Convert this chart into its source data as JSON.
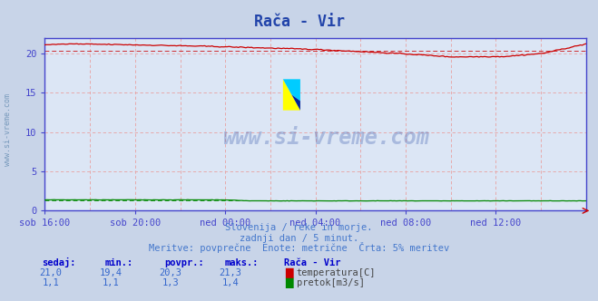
{
  "title": "Rača - Vir",
  "bg_color": "#c8d4e8",
  "plot_bg_color": "#dce6f5",
  "grid_h_color": "#e8a0a0",
  "grid_v_color": "#e8a0a0",
  "x_labels": [
    "sob 16:00",
    "sob 20:00",
    "ned 00:00",
    "ned 04:00",
    "ned 08:00",
    "ned 12:00"
  ],
  "x_ticks_pos": [
    0,
    48,
    96,
    144,
    192,
    240
  ],
  "x_max": 288,
  "y_min": 0,
  "y_max": 22,
  "y_ticks": [
    0,
    5,
    10,
    15,
    20
  ],
  "temp_color": "#cc0000",
  "temp_avg": 20.3,
  "temp_min": 19.4,
  "temp_max": 21.3,
  "flow_color": "#008800",
  "flow_avg": 1.3,
  "flow_min": 1.1,
  "flow_max": 1.4,
  "subtitle1": "Slovenija / reke in morje.",
  "subtitle2": "zadnji dan / 5 minut.",
  "subtitle3": "Meritve: povprečne  Enote: metrične  Črta: 5% meritev",
  "table_headers": [
    "sedaj:",
    "min.:",
    "povpr.:",
    "maks.:",
    "Rača - Vir"
  ],
  "table_row1": [
    "21,0",
    "19,4",
    "20,3",
    "21,3"
  ],
  "table_row2": [
    "1,1",
    "1,1",
    "1,3",
    "1,4"
  ],
  "legend1": "temperatura[C]",
  "legend2": "pretok[m3/s]",
  "watermark": "www.si-vreme.com",
  "axis_color": "#4444cc",
  "text_color": "#4477cc",
  "title_color": "#2244aa",
  "table_label_color": "#0000cc",
  "table_value_color": "#3366cc"
}
